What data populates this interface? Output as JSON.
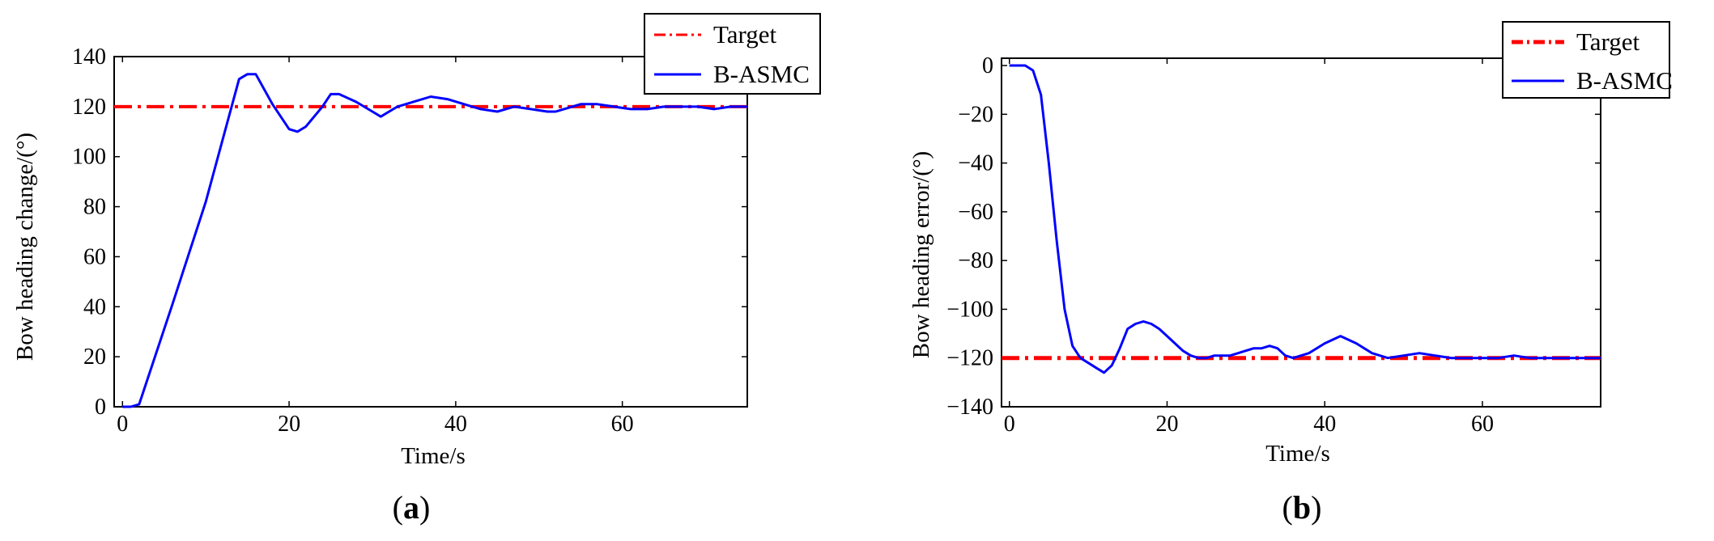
{
  "colors": {
    "target": "#ff0000",
    "series": "#0000ff",
    "axis": "#000000",
    "background": "#ffffff"
  },
  "chart_data": [
    {
      "type": "line",
      "caption_open": "(",
      "caption_letter": "a",
      "caption_close": ")",
      "xlabel": "Time/s",
      "ylabel": "Bow heading change/(°)",
      "xlim": [
        -1,
        75
      ],
      "ylim": [
        0,
        140
      ],
      "xticks": [
        0,
        20,
        40,
        60
      ],
      "yticks": [
        0,
        20,
        40,
        60,
        80,
        100,
        120,
        140
      ],
      "grid": false,
      "legend_position": "top-right",
      "series": [
        {
          "name": "Target",
          "style": "dash-dot",
          "x": [
            -1,
            75
          ],
          "y": [
            120,
            120
          ]
        },
        {
          "name": "B-ASMC",
          "style": "solid",
          "x": [
            0,
            1,
            2,
            6,
            10,
            14,
            15,
            16,
            18,
            20,
            21,
            22,
            24,
            25,
            26,
            28,
            30,
            31,
            33,
            35,
            37,
            39,
            41,
            42,
            43,
            45,
            47,
            49,
            51,
            52,
            53,
            55,
            57,
            59,
            61,
            63,
            65,
            67,
            69,
            71,
            73,
            75
          ],
          "y": [
            0,
            0,
            1,
            41,
            82,
            131,
            133,
            133,
            121,
            111,
            110,
            112,
            120,
            125,
            125,
            122,
            118,
            116,
            120,
            122,
            124,
            123,
            121,
            120,
            119,
            118,
            120,
            119,
            118,
            118,
            119,
            121,
            121,
            120,
            119,
            119,
            120,
            120,
            120,
            119,
            120,
            120
          ]
        }
      ]
    },
    {
      "type": "line",
      "caption_open": "(",
      "caption_letter": "b",
      "caption_close": ")",
      "xlabel": "Time/s",
      "ylabel": "Bow heading error/(°)",
      "xlim": [
        -1,
        75
      ],
      "ylim": [
        -140,
        3
      ],
      "xticks": [
        0,
        20,
        40,
        60
      ],
      "yticks": [
        0,
        -20,
        -40,
        -60,
        -80,
        -100,
        -120,
        -140
      ],
      "ytick_labels": [
        "0",
        "−20",
        "−40",
        "−60",
        "−80",
        "−100",
        "−120",
        "−140"
      ],
      "grid": false,
      "legend_position": "top-right",
      "series": [
        {
          "name": "Target",
          "style": "dash-dot",
          "x": [
            -1,
            75
          ],
          "y": [
            -120,
            -120
          ]
        },
        {
          "name": "B-ASMC",
          "style": "solid",
          "x": [
            0,
            1,
            2,
            3,
            4,
            5,
            6,
            7,
            8,
            9,
            10,
            11,
            12,
            13,
            14,
            15,
            16,
            17,
            18,
            19,
            20,
            21,
            22,
            23,
            24,
            25,
            26,
            28,
            30,
            31,
            32,
            33,
            34,
            35,
            36,
            38,
            40,
            42,
            44,
            46,
            48,
            50,
            52,
            54,
            56,
            58,
            60,
            62,
            64,
            66,
            68,
            70,
            72,
            75
          ],
          "y": [
            0,
            0,
            0,
            -2,
            -12,
            -40,
            -72,
            -100,
            -115,
            -120,
            -122,
            -124,
            -126,
            -123,
            -116,
            -108,
            -106,
            -105,
            -106,
            -108,
            -111,
            -114,
            -117,
            -119,
            -120,
            -120,
            -119,
            -119,
            -117,
            -116,
            -116,
            -115,
            -116,
            -119,
            -120,
            -118,
            -114,
            -111,
            -114,
            -118,
            -120,
            -119,
            -118,
            -119,
            -120,
            -120,
            -120,
            -120,
            -119,
            -120,
            -120,
            -120,
            -120,
            -120
          ]
        }
      ]
    }
  ]
}
